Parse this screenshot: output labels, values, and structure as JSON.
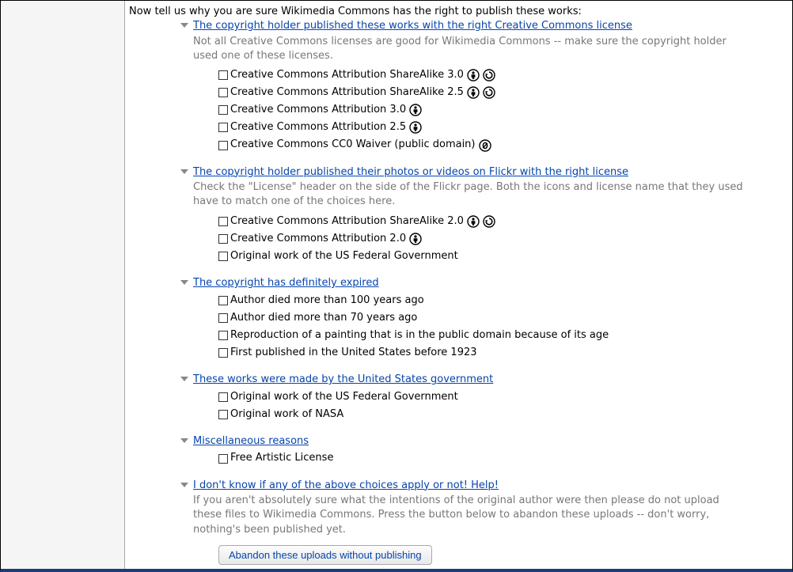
{
  "colors": {
    "link": "#0645ad",
    "muted": "#777777",
    "text": "#000000",
    "chevron": "#888888",
    "border_bottom": "#1a3d7a",
    "gutter_bg": "#f5f5f5",
    "gutter_border": "#aaaaaa",
    "button_text": "#0645ad",
    "button_bg_top": "#fdfdfd",
    "button_bg_bottom": "#e8e8e8",
    "button_border": "#aaaaaa"
  },
  "intro": "Now tell us why you are sure Wikimedia Commons has the right to publish these works:",
  "sections": [
    {
      "title": "The copyright holder published these works with the right Creative Commons license",
      "desc": "Not all Creative Commons licenses are good for Wikimedia Commons -- make sure the copyright holder used one of these licenses.",
      "options": [
        {
          "label": "Creative Commons Attribution ShareAlike 3.0",
          "icons": [
            "by",
            "sa"
          ]
        },
        {
          "label": "Creative Commons Attribution ShareAlike 2.5",
          "icons": [
            "by",
            "sa"
          ]
        },
        {
          "label": "Creative Commons Attribution 3.0",
          "icons": [
            "by"
          ]
        },
        {
          "label": "Creative Commons Attribution 2.5",
          "icons": [
            "by"
          ]
        },
        {
          "label": "Creative Commons CC0 Waiver (public domain)",
          "icons": [
            "zero"
          ]
        }
      ]
    },
    {
      "title": "The copyright holder published their photos or videos on Flickr with the right license",
      "desc": "Check the \"License\" header on the side of the Flickr page. Both the icons and license name that they used have to match one of the choices here.",
      "options": [
        {
          "label": "Creative Commons Attribution ShareAlike 2.0",
          "icons": [
            "by",
            "sa"
          ]
        },
        {
          "label": "Creative Commons Attribution 2.0",
          "icons": [
            "by"
          ]
        },
        {
          "label": "Original work of the US Federal Government",
          "icons": []
        }
      ]
    },
    {
      "title": "The copyright has definitely expired",
      "desc": "",
      "options": [
        {
          "label": "Author died more than 100 years ago",
          "icons": []
        },
        {
          "label": "Author died more than 70 years ago",
          "icons": []
        },
        {
          "label": "Reproduction of a painting that is in the public domain because of its age",
          "icons": []
        },
        {
          "label": "First published in the United States before 1923",
          "icons": []
        }
      ]
    },
    {
      "title": "These works were made by the United States government",
      "desc": "",
      "options": [
        {
          "label": "Original work of the US Federal Government",
          "icons": []
        },
        {
          "label": "Original work of NASA",
          "icons": []
        }
      ]
    },
    {
      "title": "Miscellaneous reasons",
      "desc": "",
      "options": [
        {
          "label": "Free Artistic License",
          "icons": []
        }
      ]
    },
    {
      "title": "I don't know if any of the above choices apply or not! Help!",
      "desc": "If you aren't absolutely sure what the intentions of the original author were then please do not upload these files to Wikimedia Commons. Press the button below to abandon these uploads -- don't worry, nothing's been published yet.",
      "options": [],
      "button": "Abandon these uploads without publishing"
    }
  ]
}
